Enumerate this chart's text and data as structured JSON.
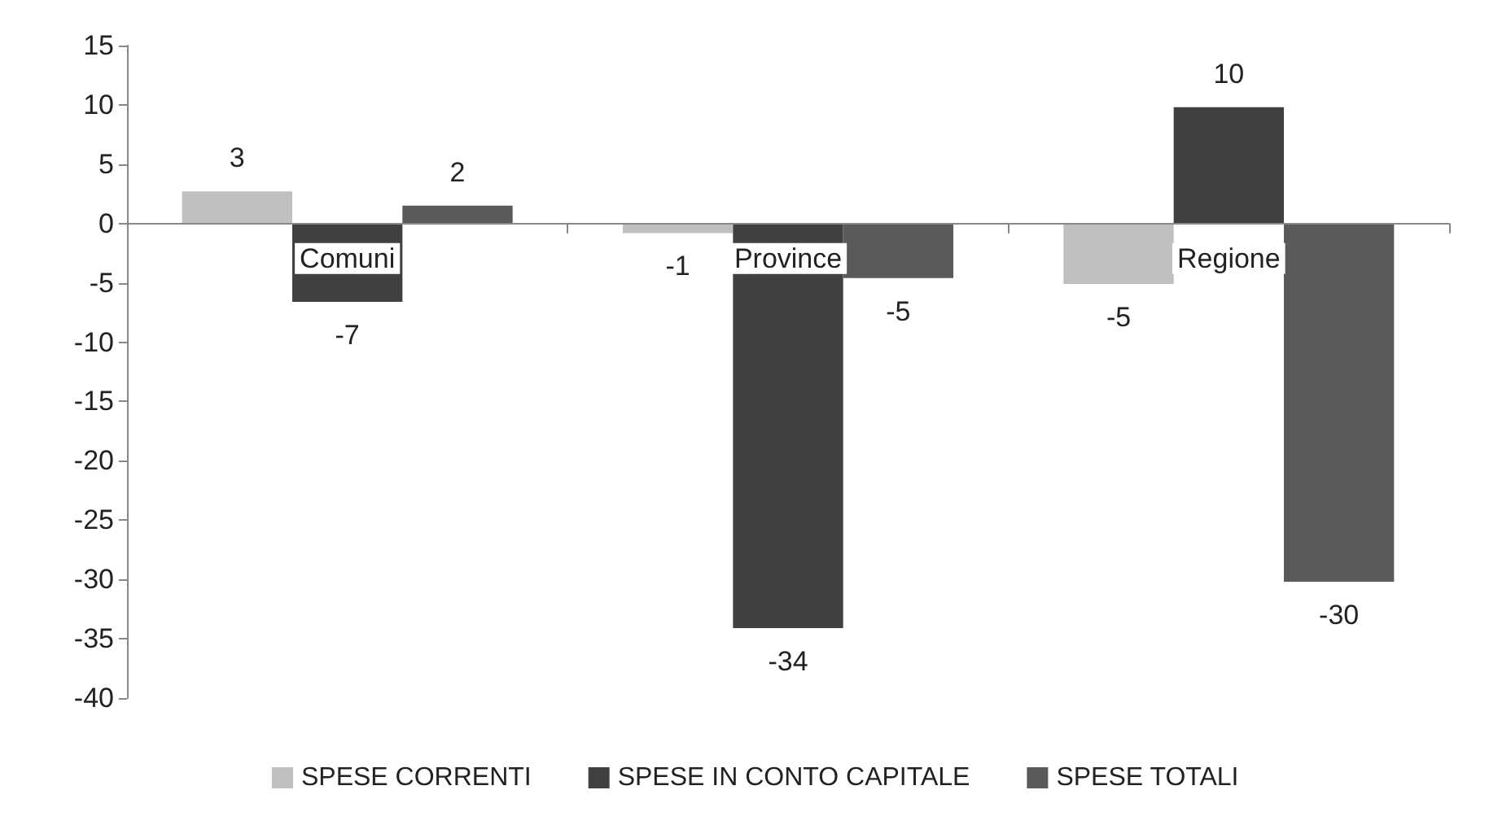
{
  "chart_data": {
    "type": "bar",
    "categories": [
      "Comuni",
      "Province",
      "Regione"
    ],
    "series": [
      {
        "name": "SPESE CORRENTI",
        "color": "#bfbfbf",
        "values": [
          2.7,
          -0.8,
          -5.1
        ],
        "value_labels": [
          "3",
          "-1",
          "-5"
        ]
      },
      {
        "name": "SPESE IN CONTO CAPITALE",
        "color": "#404040",
        "values": [
          -6.6,
          -34.1,
          9.8
        ],
        "value_labels": [
          "-7",
          "-34",
          "10"
        ]
      },
      {
        "name": "SPESE TOTALI",
        "color": "#5a5a5a",
        "values": [
          1.5,
          -4.6,
          -30.2
        ],
        "value_labels": [
          "2",
          "-5",
          "-30"
        ]
      }
    ],
    "ylim": [
      -40,
      15
    ],
    "yticks": [
      -40,
      -35,
      -30,
      -25,
      -20,
      -15,
      -10,
      -5,
      0,
      5,
      10,
      15
    ],
    "grid": false,
    "legend": "bottom"
  }
}
